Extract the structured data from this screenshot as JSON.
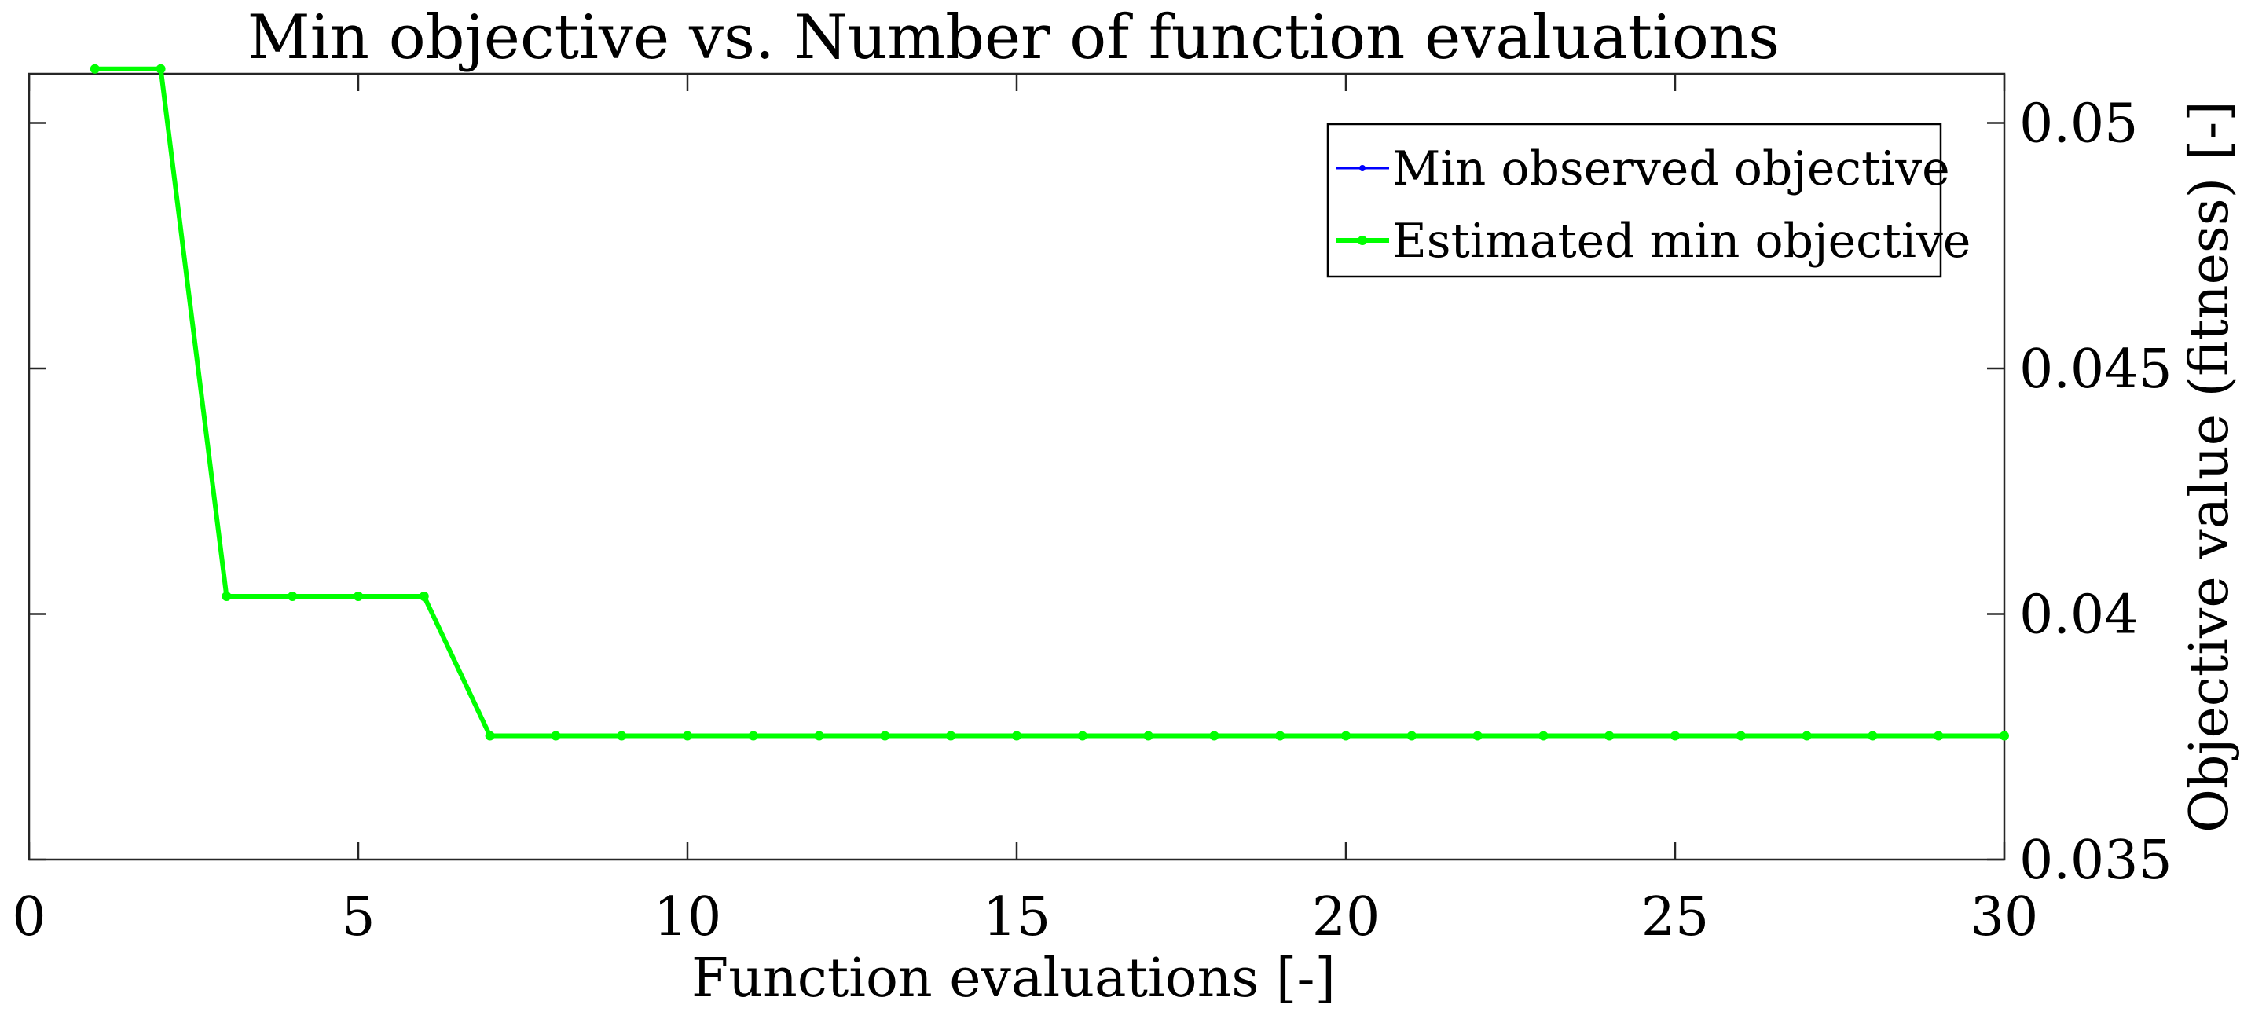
{
  "chart_data": {
    "type": "line",
    "title": "Min objective vs. Number of function evaluations",
    "xlabel": "Function evaluations [-]",
    "ylabel": "Objective value (fitness) [-]",
    "xlim": [
      0,
      30
    ],
    "ylim": [
      0.035,
      0.051
    ],
    "x_ticks": [
      0,
      5,
      10,
      15,
      20,
      25,
      30
    ],
    "x_tick_labels": [
      "0",
      "5",
      "10",
      "15",
      "20",
      "25",
      "30"
    ],
    "y_ticks": [
      0.035,
      0.04,
      0.045,
      0.05
    ],
    "y_tick_labels": [
      "0.035",
      "0.04",
      "0.045",
      "0.05"
    ],
    "y_axis_position": "right",
    "grid": false,
    "legend_position": "top-right",
    "x": [
      1,
      2,
      3,
      4,
      5,
      6,
      7,
      8,
      9,
      10,
      11,
      12,
      13,
      14,
      15,
      16,
      17,
      18,
      19,
      20,
      21,
      22,
      23,
      24,
      25,
      26,
      27,
      28,
      29,
      30
    ],
    "series": [
      {
        "name": "Min observed objective",
        "color": "#0000ff",
        "values": [
          0.0511,
          0.0511,
          0.04036,
          0.04036,
          0.04036,
          0.04036,
          0.03752,
          0.03752,
          0.03752,
          0.03752,
          0.03752,
          0.03752,
          0.03752,
          0.03752,
          0.03752,
          0.03752,
          0.03752,
          0.03752,
          0.03752,
          0.03752,
          0.03752,
          0.03752,
          0.03752,
          0.03752,
          0.03752,
          0.03752,
          0.03752,
          0.03752,
          0.03752,
          0.03752
        ]
      },
      {
        "name": "Estimated min objective",
        "color": "#00ff00",
        "values": [
          0.0511,
          0.0511,
          0.04036,
          0.04036,
          0.04036,
          0.04036,
          0.03752,
          0.03752,
          0.03752,
          0.03752,
          0.03752,
          0.03752,
          0.03752,
          0.03752,
          0.03752,
          0.03752,
          0.03752,
          0.03752,
          0.03752,
          0.03752,
          0.03752,
          0.03752,
          0.03752,
          0.03752,
          0.03752,
          0.03752,
          0.03752,
          0.03752,
          0.03752,
          0.03752
        ]
      }
    ]
  }
}
